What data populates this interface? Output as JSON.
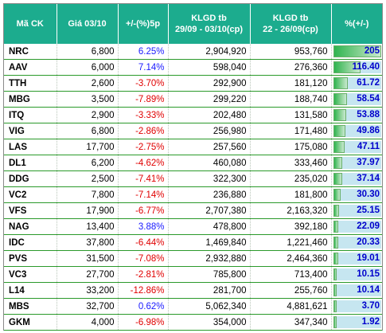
{
  "headers": [
    {
      "line1": "Mã CK",
      "line2": ""
    },
    {
      "line1": "Giá 03/10",
      "line2": ""
    },
    {
      "line1": "+/-(%)5p",
      "line2": ""
    },
    {
      "line1": "KLGD tb",
      "line2": "29/09 - 03/10(cp)"
    },
    {
      "line1": "KLGD tb",
      "line2": "22 - 26/09(cp)"
    },
    {
      "line1": "%(+/-)",
      "line2": ""
    }
  ],
  "colors": {
    "header_bg": "#1cac8e",
    "up": "#1a1aff",
    "down": "#e00000",
    "bar_value": "#0000cc"
  },
  "rows": [
    {
      "code": "NRC",
      "price": "6,800",
      "change": "6.25%",
      "dir": "up",
      "vol_this": "2,904,920",
      "vol_prev": "953,760",
      "pct": "205",
      "pct_value": 205
    },
    {
      "code": "AAV",
      "price": "6,000",
      "change": "7.14%",
      "dir": "up",
      "vol_this": "598,040",
      "vol_prev": "276,360",
      "pct": "116.40",
      "pct_value": 116.4
    },
    {
      "code": "TTH",
      "price": "2,600",
      "change": "-3.70%",
      "dir": "down",
      "vol_this": "292,900",
      "vol_prev": "181,120",
      "pct": "61.72",
      "pct_value": 61.72
    },
    {
      "code": "MBG",
      "price": "3,500",
      "change": "-7.89%",
      "dir": "down",
      "vol_this": "299,220",
      "vol_prev": "188,740",
      "pct": "58.54",
      "pct_value": 58.54
    },
    {
      "code": "ITQ",
      "price": "2,900",
      "change": "-3.33%",
      "dir": "down",
      "vol_this": "202,480",
      "vol_prev": "131,580",
      "pct": "53.88",
      "pct_value": 53.88
    },
    {
      "code": "VIG",
      "price": "6,800",
      "change": "-2.86%",
      "dir": "down",
      "vol_this": "256,980",
      "vol_prev": "171,480",
      "pct": "49.86",
      "pct_value": 49.86
    },
    {
      "code": "LAS",
      "price": "17,700",
      "change": "-2.75%",
      "dir": "down",
      "vol_this": "257,560",
      "vol_prev": "175,080",
      "pct": "47.11",
      "pct_value": 47.11
    },
    {
      "code": "DL1",
      "price": "6,200",
      "change": "-4.62%",
      "dir": "down",
      "vol_this": "460,080",
      "vol_prev": "333,460",
      "pct": "37.97",
      "pct_value": 37.97
    },
    {
      "code": "DDG",
      "price": "2,500",
      "change": "-7.41%",
      "dir": "down",
      "vol_this": "322,300",
      "vol_prev": "235,020",
      "pct": "37.14",
      "pct_value": 37.14
    },
    {
      "code": "VC2",
      "price": "7,800",
      "change": "-7.14%",
      "dir": "down",
      "vol_this": "236,880",
      "vol_prev": "181,800",
      "pct": "30.30",
      "pct_value": 30.3
    },
    {
      "code": "VFS",
      "price": "17,900",
      "change": "-6.77%",
      "dir": "down",
      "vol_this": "2,707,380",
      "vol_prev": "2,163,320",
      "pct": "25.15",
      "pct_value": 25.15
    },
    {
      "code": "NAG",
      "price": "13,400",
      "change": "3.88%",
      "dir": "up",
      "vol_this": "478,800",
      "vol_prev": "392,180",
      "pct": "22.09",
      "pct_value": 22.09
    },
    {
      "code": "IDC",
      "price": "37,800",
      "change": "-6.44%",
      "dir": "down",
      "vol_this": "1,469,840",
      "vol_prev": "1,221,460",
      "pct": "20.33",
      "pct_value": 20.33
    },
    {
      "code": "PVS",
      "price": "31,500",
      "change": "-7.08%",
      "dir": "down",
      "vol_this": "2,932,880",
      "vol_prev": "2,464,360",
      "pct": "19.01",
      "pct_value": 19.01
    },
    {
      "code": "VC3",
      "price": "27,700",
      "change": "-2.81%",
      "dir": "down",
      "vol_this": "785,800",
      "vol_prev": "713,400",
      "pct": "10.15",
      "pct_value": 10.15
    },
    {
      "code": "L14",
      "price": "33,200",
      "change": "-12.86%",
      "dir": "down",
      "vol_this": "281,700",
      "vol_prev": "255,760",
      "pct": "10.14",
      "pct_value": 10.14
    },
    {
      "code": "MBS",
      "price": "32,700",
      "change": "0.62%",
      "dir": "up",
      "vol_this": "5,062,340",
      "vol_prev": "4,881,621",
      "pct": "3.70",
      "pct_value": 3.7
    },
    {
      "code": "GKM",
      "price": "4,000",
      "change": "-6.98%",
      "dir": "down",
      "vol_this": "354,000",
      "vol_prev": "347,340",
      "pct": "1.92",
      "pct_value": 1.92
    }
  ]
}
